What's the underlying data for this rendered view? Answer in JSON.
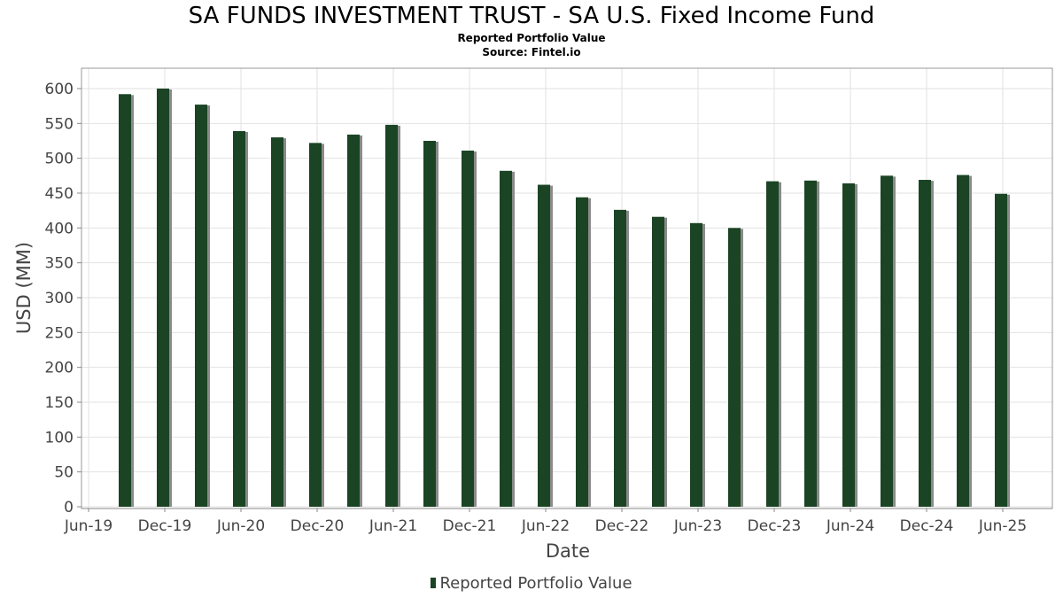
{
  "chart_data": {
    "type": "bar",
    "title": "SA FUNDS INVESTMENT TRUST - SA U.S. Fixed Income Fund",
    "subtitle": "Reported Portfolio Value",
    "source": "Source: Fintel.io",
    "xlabel": "Date",
    "ylabel": "USD (MM)",
    "ylim": [
      0,
      630
    ],
    "yticks": [
      0,
      50,
      100,
      150,
      200,
      250,
      300,
      350,
      400,
      450,
      500,
      550,
      600
    ],
    "xticks": [
      "Jun-19",
      "Dec-19",
      "Jun-20",
      "Dec-20",
      "Jun-21",
      "Dec-21",
      "Jun-22",
      "Dec-22",
      "Jun-23",
      "Dec-23",
      "Jun-24",
      "Dec-24",
      "Jun-25"
    ],
    "grid": true,
    "legend_position": "bottom-center",
    "bar_color": "#1a4424",
    "shadow_color": "#8a8a8a",
    "series": [
      {
        "name": "Reported Portfolio Value",
        "points": [
          {
            "date": "2019-09",
            "value": 592
          },
          {
            "date": "2019-12",
            "value": 600
          },
          {
            "date": "2020-03",
            "value": 577
          },
          {
            "date": "2020-06",
            "value": 539
          },
          {
            "date": "2020-09",
            "value": 530
          },
          {
            "date": "2020-12",
            "value": 522
          },
          {
            "date": "2021-03",
            "value": 534
          },
          {
            "date": "2021-06",
            "value": 548
          },
          {
            "date": "2021-09",
            "value": 525
          },
          {
            "date": "2021-12",
            "value": 511
          },
          {
            "date": "2022-03",
            "value": 482
          },
          {
            "date": "2022-06",
            "value": 462
          },
          {
            "date": "2022-09",
            "value": 444
          },
          {
            "date": "2022-12",
            "value": 426
          },
          {
            "date": "2023-03",
            "value": 416
          },
          {
            "date": "2023-06",
            "value": 407
          },
          {
            "date": "2023-09",
            "value": 400
          },
          {
            "date": "2023-12",
            "value": 467
          },
          {
            "date": "2024-03",
            "value": 468
          },
          {
            "date": "2024-06",
            "value": 464
          },
          {
            "date": "2024-09",
            "value": 475
          },
          {
            "date": "2024-12",
            "value": 469
          },
          {
            "date": "2025-03",
            "value": 476
          },
          {
            "date": "2025-06",
            "value": 449
          }
        ]
      }
    ]
  }
}
